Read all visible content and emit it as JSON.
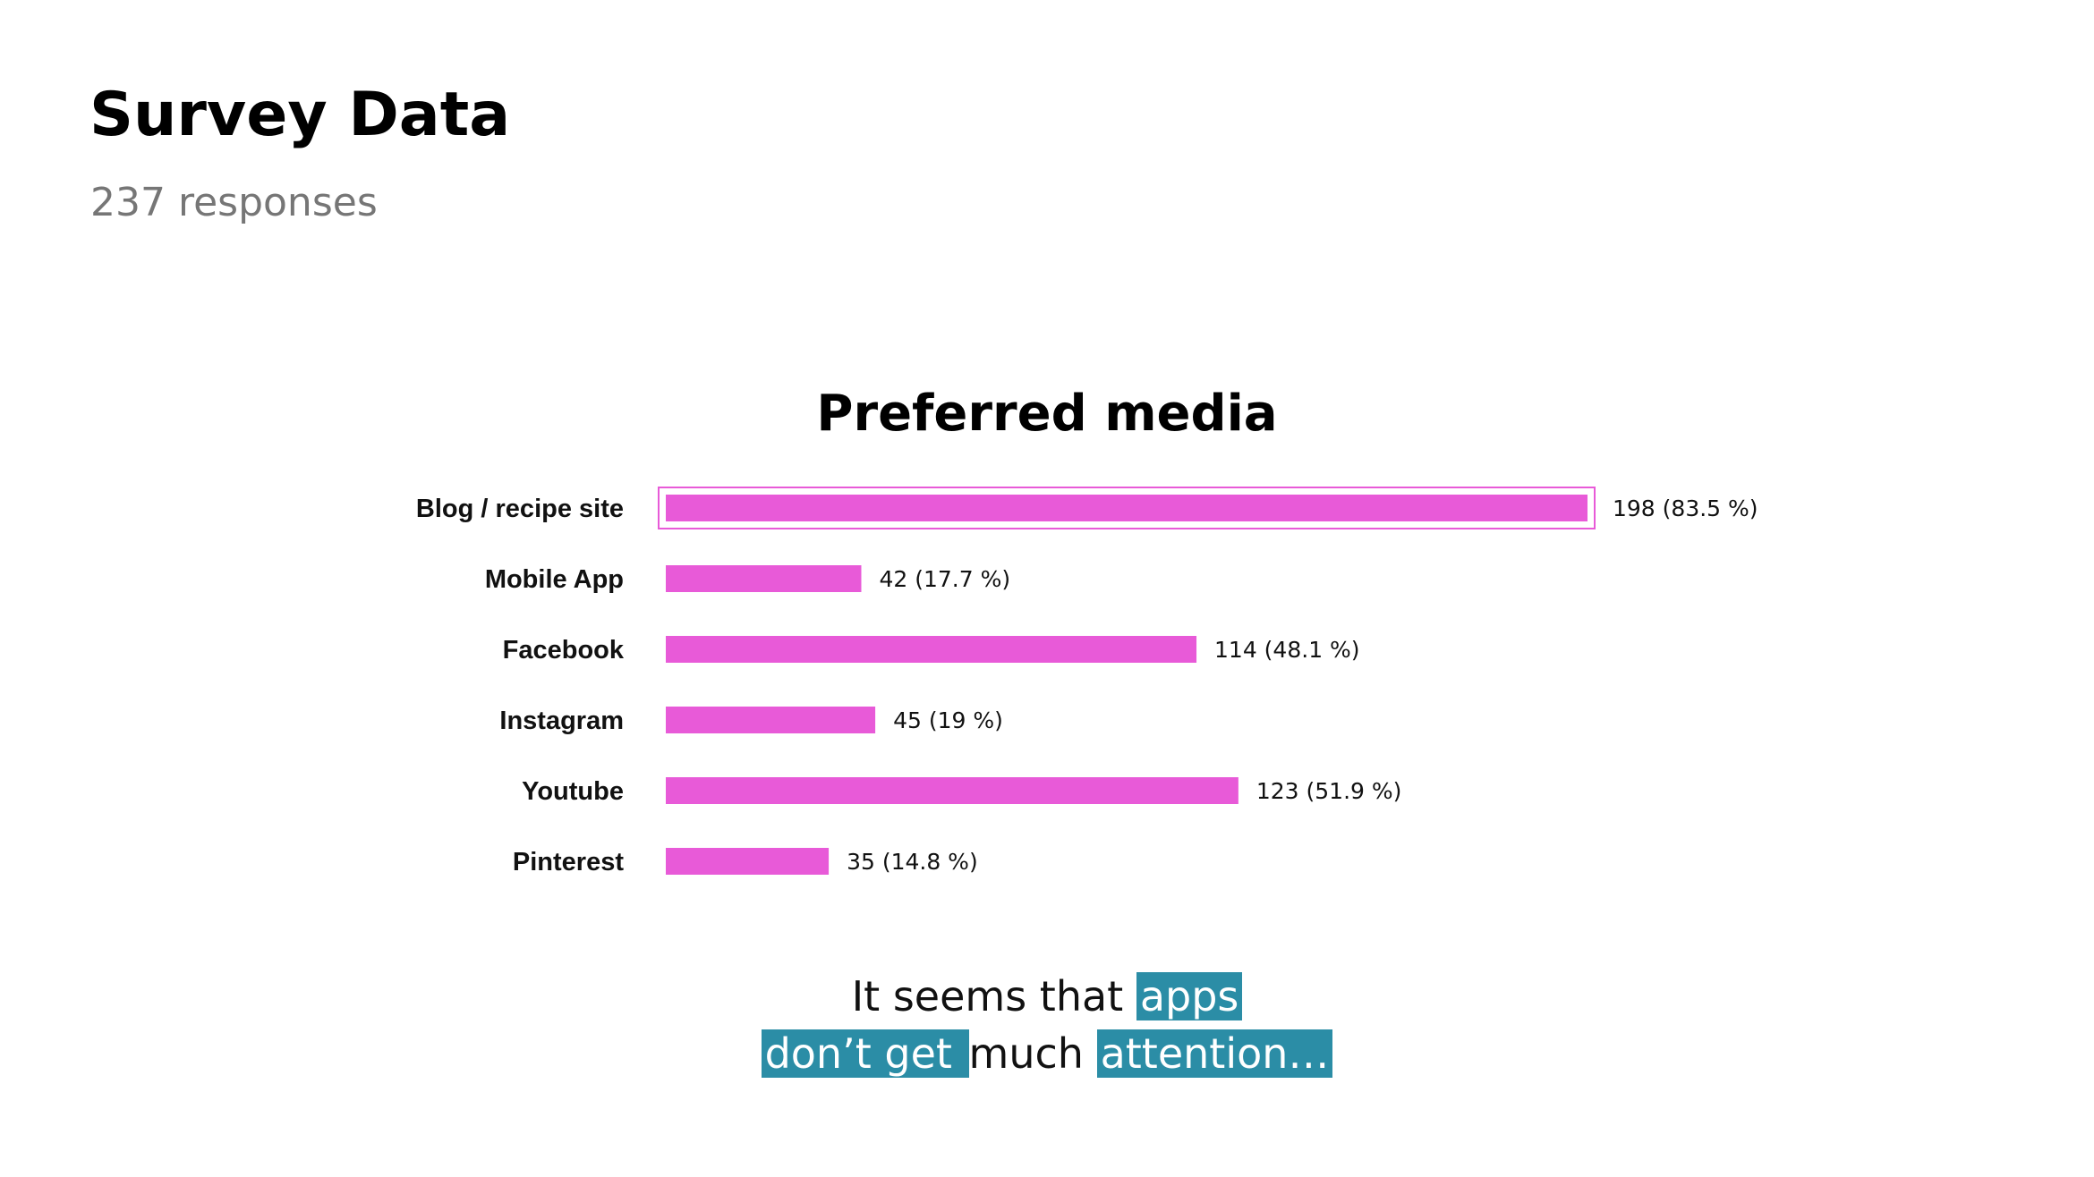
{
  "header": {
    "title": "Survey Data",
    "subtitle": "237 responses"
  },
  "chart_data": {
    "type": "bar",
    "orientation": "horizontal",
    "title": "Preferred media",
    "categories": [
      "Blog / recipe site",
      "Mobile App",
      "Facebook",
      "Instagram",
      "Youtube",
      "Pinterest"
    ],
    "values": [
      198,
      42,
      114,
      45,
      123,
      35
    ],
    "data_labels": [
      "198 (83.5 %)",
      "42 (17.7 %)",
      "114 (48.1 %)",
      "45 (19 %)",
      "123 (51.9 %)",
      "35 (14.8 %)"
    ],
    "highlighted_category": "Blog / recipe site",
    "xlim": [
      0,
      198
    ],
    "grid": false,
    "bar_color": "#e85ad8"
  },
  "note": {
    "line1_plain": "It seems that ",
    "line1_highlight": "apps",
    "line2_highlight_a": "don’t get ",
    "line2_plain": " much ",
    "line2_highlight_b": "attention…",
    "highlight_color": "#2b8da6"
  }
}
